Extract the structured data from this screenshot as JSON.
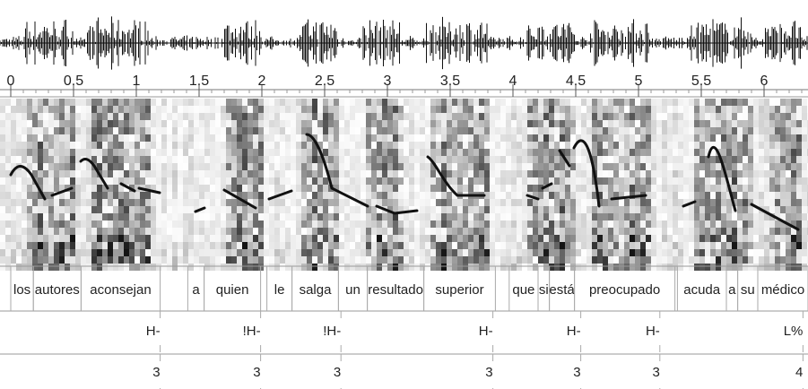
{
  "time_axis": {
    "xlim": [
      0,
      6.35
    ],
    "xticks": [
      0,
      0.5,
      1,
      1.5,
      2,
      2.5,
      3,
      3.5,
      4,
      4.5,
      5,
      5.5,
      6
    ]
  },
  "tiers": {
    "words": [
      {
        "label": "los",
        "start": 0,
        "end": 0.18
      },
      {
        "label": "autores",
        "start": 0.18,
        "end": 0.56
      },
      {
        "label": "aconsejan",
        "start": 0.56,
        "end": 1.19
      },
      {
        "label": "a",
        "start": 1.41,
        "end": 1.54
      },
      {
        "label": "quien",
        "start": 1.54,
        "end": 1.99
      },
      {
        "label": "le",
        "start": 2.04,
        "end": 2.24
      },
      {
        "label": "salga",
        "start": 2.24,
        "end": 2.61
      },
      {
        "label": "un",
        "start": 2.61,
        "end": 2.84
      },
      {
        "label": "resultado",
        "start": 2.84,
        "end": 3.29
      },
      {
        "label": "superior",
        "start": 3.29,
        "end": 3.86
      },
      {
        "label": "que",
        "start": 3.97,
        "end": 4.2
      },
      {
        "label": "si",
        "start": 4.2,
        "end": 4.29
      },
      {
        "label": "está",
        "start": 4.29,
        "end": 4.49
      },
      {
        "label": "preocupado",
        "start": 4.49,
        "end": 5.29
      },
      {
        "label": "acuda",
        "start": 5.31,
        "end": 5.7
      },
      {
        "label": "a",
        "start": 5.7,
        "end": 5.79
      },
      {
        "label": "su",
        "start": 5.79,
        "end": 5.95
      },
      {
        "label": "médico",
        "start": 5.95,
        "end": 6.35
      }
    ],
    "tones": [
      {
        "label": "H-",
        "time": 1.19
      },
      {
        "label": "!H-",
        "time": 1.99
      },
      {
        "label": "!H-",
        "time": 2.63
      },
      {
        "label": "H-",
        "time": 3.84
      },
      {
        "label": "H-",
        "time": 4.54
      },
      {
        "label": "H-",
        "time": 5.17
      },
      {
        "label": "L%",
        "time": 6.31
      }
    ],
    "breaks": [
      {
        "label": "3",
        "time": 1.19
      },
      {
        "label": "3",
        "time": 1.99
      },
      {
        "label": "3",
        "time": 2.63
      },
      {
        "label": "3",
        "time": 3.84
      },
      {
        "label": "3",
        "time": 4.54
      },
      {
        "label": "3",
        "time": 5.17
      },
      {
        "label": "4",
        "time": 6.31
      }
    ]
  }
}
